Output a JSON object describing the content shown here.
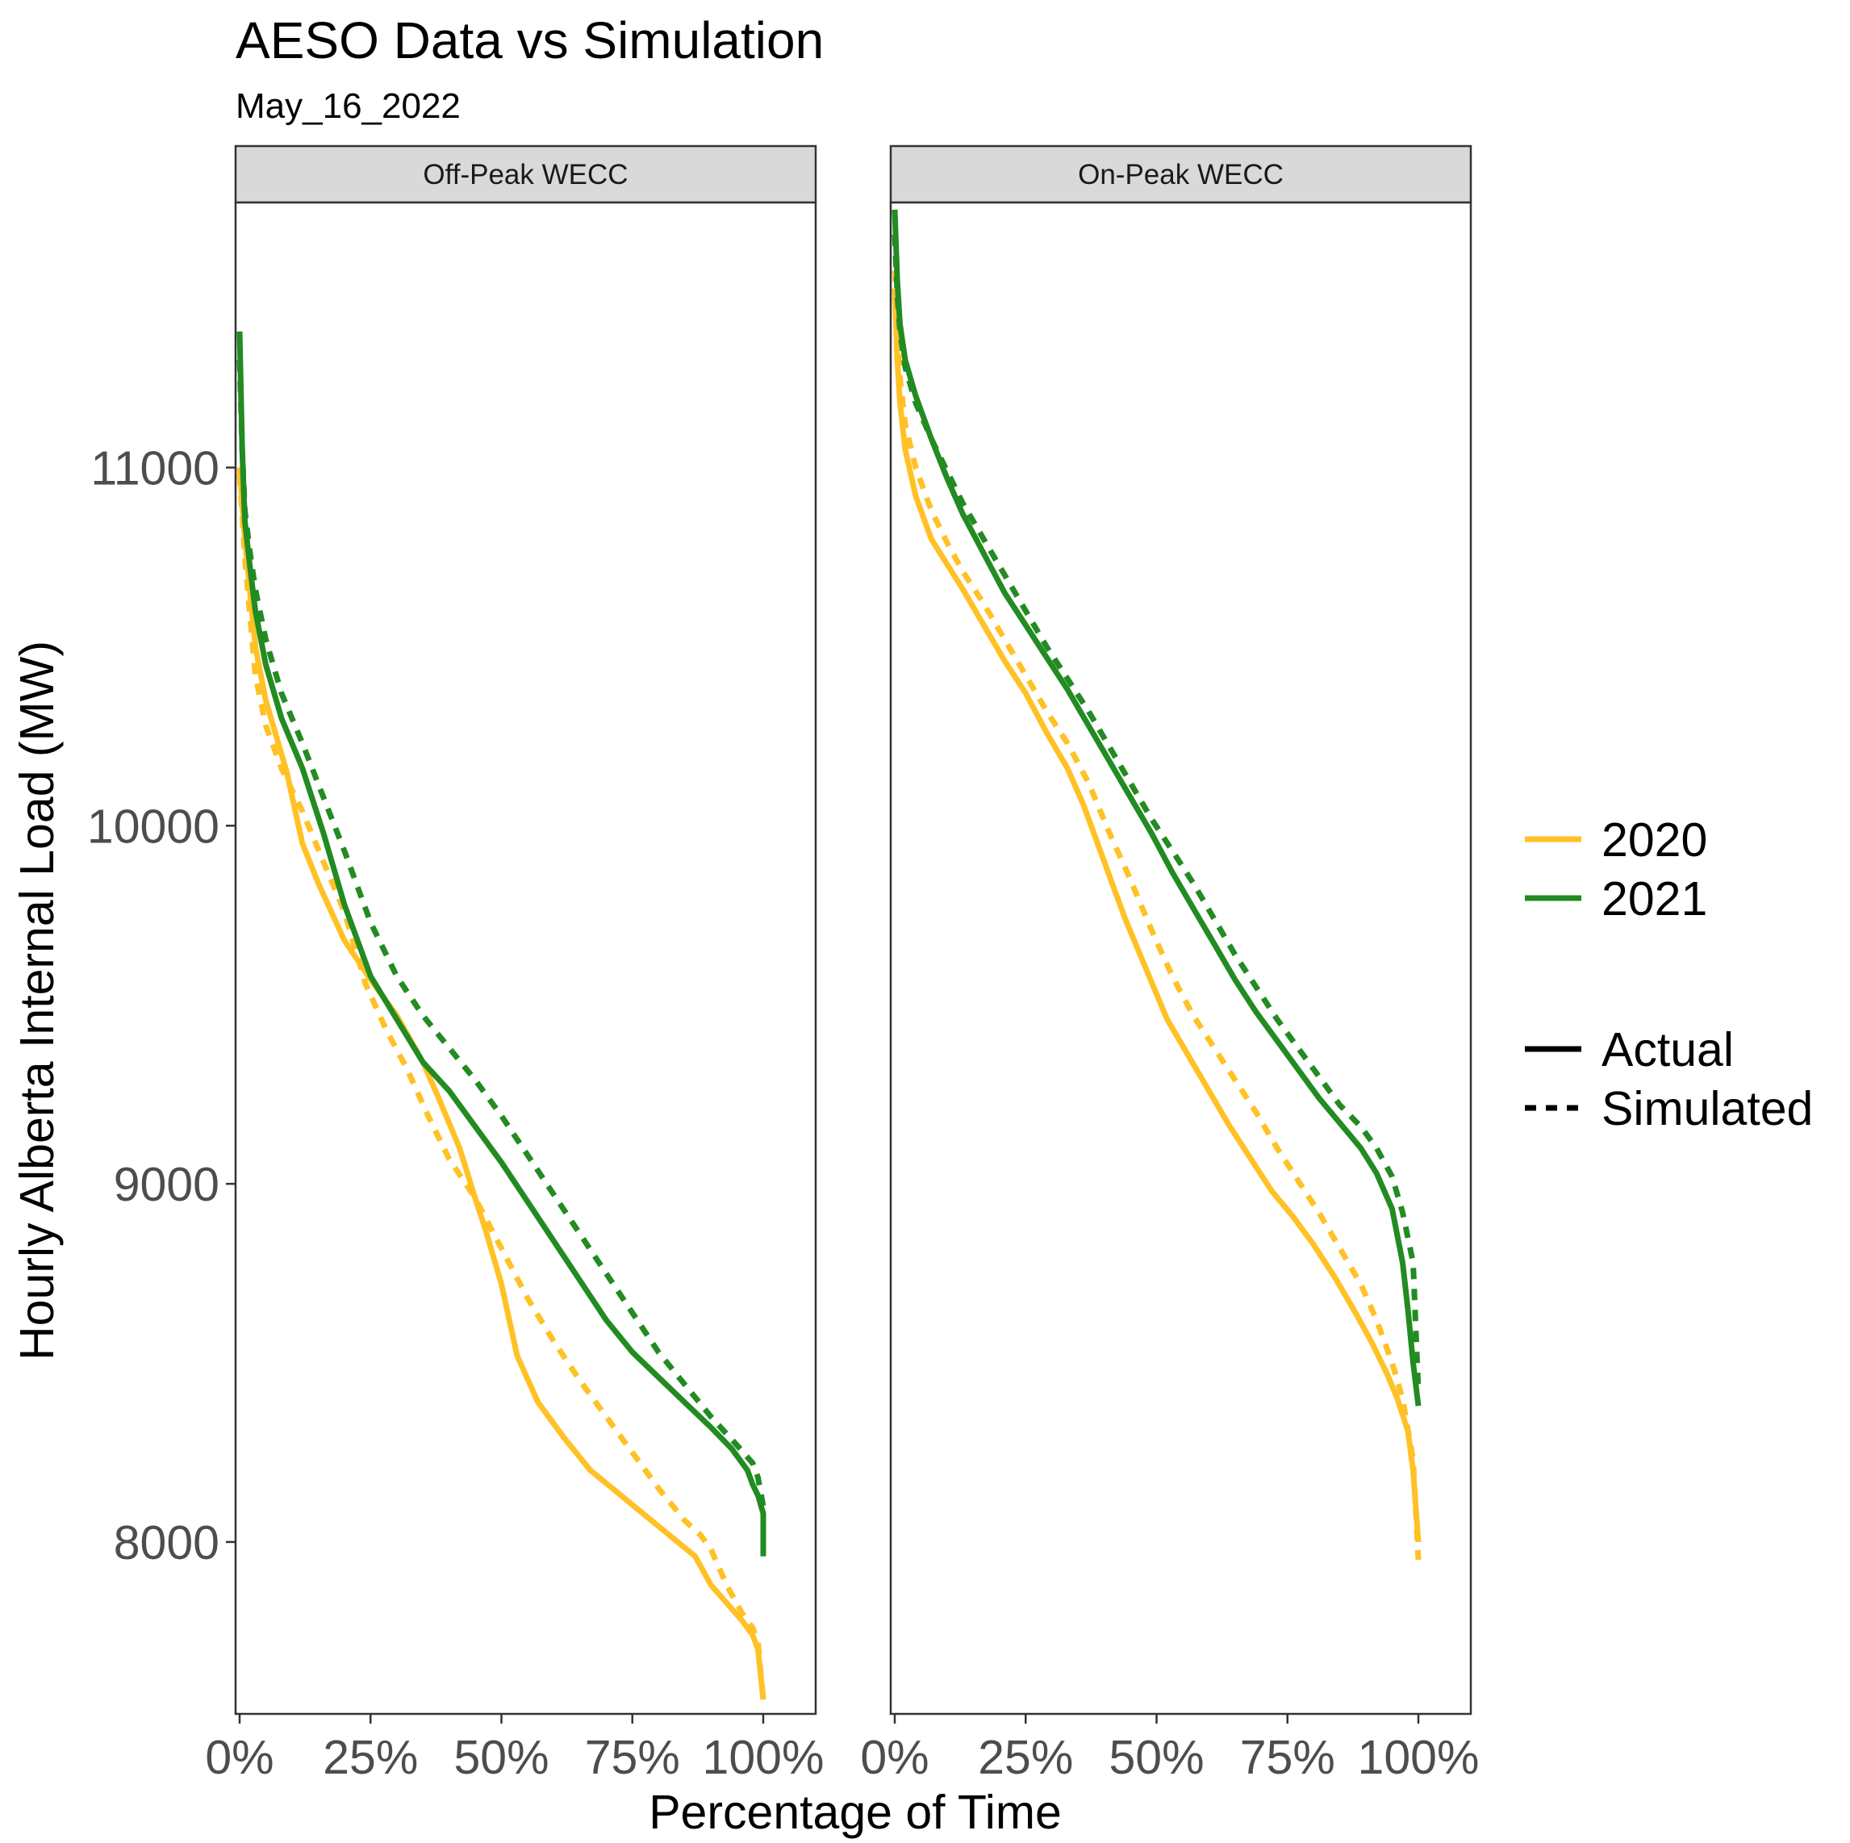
{
  "title": "AESO Data vs Simulation",
  "subtitle": "May_16_2022",
  "chart_data": {
    "type": "line",
    "title": "AESO Data vs Simulation",
    "subtitle": "May_16_2022",
    "xlabel": "Percentage of Time",
    "ylabel": "Hourly Alberta Internal Load (MW)",
    "xlim": [
      0,
      100
    ],
    "ylim": [
      7520,
      11740
    ],
    "x_ticks": [
      0,
      25,
      50,
      75,
      100
    ],
    "x_tick_labels": [
      "0%",
      "25%",
      "50%",
      "75%",
      "100%"
    ],
    "y_ticks": [
      8000,
      9000,
      10000,
      11000
    ],
    "y_tick_labels": [
      "8000",
      "9000",
      "10000",
      "11000"
    ],
    "grid": false,
    "legend_position": "right",
    "colors": {
      "2020": "#FFC125",
      "2021": "#228B22"
    },
    "legend": {
      "color": [
        {
          "label": "2020",
          "color": "#FFC125"
        },
        {
          "label": "2021",
          "color": "#228B22"
        }
      ],
      "linetype": [
        {
          "label": "Actual",
          "dash": "solid"
        },
        {
          "label": "Simulated",
          "dash": "dashed"
        }
      ]
    },
    "panels": [
      {
        "name": "Off-Peak WECC",
        "series": [
          {
            "year": "2020",
            "type": "Actual",
            "x": [
              0,
              1,
              2,
              3,
              5,
              7,
              9,
              12,
              15,
              20,
              25,
              30,
              35,
              38,
              42,
              45,
              47,
              50,
              53,
              57,
              62,
              67,
              72,
              77,
              82,
              87,
              90,
              93,
              96,
              98,
              99,
              100
            ],
            "y": [
              11000,
              10800,
              10650,
              10500,
              10350,
              10250,
              10150,
              9950,
              9840,
              9680,
              9570,
              9470,
              9340,
              9240,
              9100,
              8960,
              8870,
              8720,
              8520,
              8390,
              8290,
              8200,
              8140,
              8080,
              8020,
              7960,
              7880,
              7830,
              7780,
              7740,
              7700,
              7560
            ]
          },
          {
            "year": "2020",
            "type": "Simulated",
            "x": [
              0,
              1,
              2,
              3,
              5,
              8,
              12,
              16,
              20,
              24,
              28,
              32,
              36,
              40,
              45,
              50,
              55,
              60,
              65,
              70,
              75,
              80,
              85,
              88,
              90,
              93,
              96,
              98,
              99,
              100
            ],
            "y": [
              10980,
              10750,
              10580,
              10420,
              10280,
              10160,
              10040,
              9900,
              9760,
              9560,
              9430,
              9320,
              9190,
              9070,
              8960,
              8820,
              8680,
              8560,
              8450,
              8350,
              8250,
              8150,
              8060,
              8020,
              7980,
              7880,
              7800,
              7760,
              7720,
              7560
            ]
          },
          {
            "year": "2021",
            "type": "Actual",
            "x": [
              0,
              0.5,
              1,
              2,
              3,
              5,
              8,
              12,
              16,
              20,
              25,
              30,
              35,
              40,
              45,
              50,
              55,
              60,
              65,
              70,
              75,
              80,
              85,
              90,
              94,
              97,
              98,
              99,
              100,
              100
            ],
            "y": [
              11380,
              11050,
              10850,
              10720,
              10600,
              10450,
              10300,
              10160,
              9980,
              9780,
              9580,
              9460,
              9340,
              9260,
              9160,
              9060,
              8950,
              8840,
              8730,
              8620,
              8530,
              8460,
              8390,
              8320,
              8260,
              8200,
              8160,
              8130,
              8080,
              7960
            ]
          },
          {
            "year": "2021",
            "type": "Simulated",
            "x": [
              0,
              0.5,
              1,
              2,
              3,
              5,
              8,
              12,
              16,
              20,
              25,
              30,
              35,
              40,
              45,
              50,
              55,
              60,
              65,
              70,
              75,
              80,
              85,
              90,
              95,
              98,
              99,
              100
            ],
            "y": [
              11300,
              11050,
              10880,
              10760,
              10660,
              10520,
              10370,
              10230,
              10080,
              9930,
              9730,
              9580,
              9470,
              9380,
              9290,
              9190,
              9080,
              8970,
              8860,
              8750,
              8640,
              8530,
              8440,
              8350,
              8270,
              8220,
              8180,
              8100
            ]
          }
        ]
      },
      {
        "name": "On-Peak WECC",
        "series": [
          {
            "year": "2020",
            "type": "Actual",
            "x": [
              0,
              0.5,
              1,
              2,
              4,
              7,
              10,
              13,
              17,
              21,
              25,
              29,
              33,
              36,
              40,
              44,
              48,
              52,
              56,
              60,
              64,
              68,
              72,
              76,
              80,
              84,
              88,
              91,
              94,
              96,
              98,
              99,
              100
            ],
            "y": [
              11500,
              11300,
              11180,
              11050,
              10920,
              10800,
              10730,
              10660,
              10560,
              10460,
              10370,
              10260,
              10160,
              10060,
              9900,
              9740,
              9600,
              9460,
              9360,
              9260,
              9160,
              9070,
              8980,
              8910,
              8830,
              8740,
              8640,
              8560,
              8470,
              8400,
              8310,
              8200,
              8000
            ]
          },
          {
            "year": "2020",
            "type": "Simulated",
            "x": [
              0,
              0.5,
              1,
              2,
              4,
              7,
              10,
              13,
              17,
              21,
              25,
              29,
              33,
              37,
              41,
              45,
              49,
              53,
              57,
              61,
              65,
              69,
              73,
              77,
              81,
              85,
              89,
              92,
              95,
              97,
              99,
              100
            ],
            "y": [
              11550,
              11380,
              11250,
              11120,
              11000,
              10880,
              10790,
              10710,
              10620,
              10520,
              10420,
              10320,
              10230,
              10120,
              9980,
              9850,
              9710,
              9580,
              9470,
              9380,
              9290,
              9200,
              9100,
              9010,
              8920,
              8820,
              8720,
              8620,
              8500,
              8400,
              8230,
              7950
            ]
          },
          {
            "year": "2021",
            "type": "Actual",
            "x": [
              0,
              0.5,
              1,
              2,
              4,
              7,
              10,
              13,
              17,
              21,
              25,
              29,
              33,
              37,
              41,
              45,
              49,
              53,
              57,
              61,
              65,
              69,
              73,
              77,
              81,
              85,
              89,
              92,
              95,
              97,
              98,
              99,
              100
            ],
            "y": [
              11720,
              11520,
              11400,
              11300,
              11200,
              11080,
              10970,
              10870,
              10760,
              10650,
              10560,
              10470,
              10380,
              10280,
              10180,
              10080,
              9980,
              9870,
              9770,
              9670,
              9570,
              9480,
              9400,
              9320,
              9240,
              9170,
              9100,
              9030,
              8930,
              8780,
              8650,
              8500,
              8380
            ]
          },
          {
            "year": "2021",
            "type": "Simulated",
            "x": [
              0,
              0.5,
              1,
              2,
              4,
              7,
              10,
              13,
              17,
              21,
              25,
              29,
              33,
              37,
              41,
              45,
              49,
              53,
              57,
              61,
              65,
              69,
              73,
              77,
              81,
              85,
              89,
              92,
              95,
              97,
              99,
              100
            ],
            "y": [
              11650,
              11480,
              11380,
              11280,
              11180,
              11080,
              10990,
              10900,
              10800,
              10700,
              10600,
              10500,
              10410,
              10320,
              10220,
              10120,
              10020,
              9930,
              9840,
              9740,
              9640,
              9550,
              9460,
              9380,
              9300,
              9220,
              9160,
              9100,
              9020,
              8920,
              8780,
              8420
            ]
          }
        ]
      }
    ]
  }
}
